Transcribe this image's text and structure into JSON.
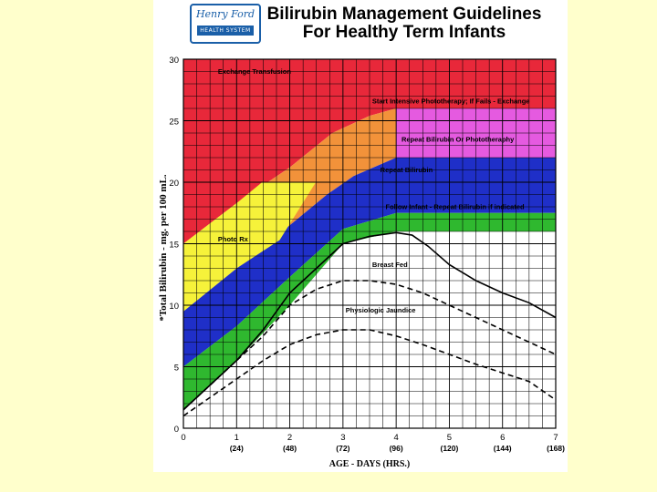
{
  "logo": {
    "script_text": "Henry Ford",
    "band_text": "HEALTH SYSTEM"
  },
  "title": {
    "line1": "Bilirubin Management Guidelines",
    "line2": "For Healthy Term Infants"
  },
  "colors": {
    "background": "#ffffcc",
    "exchange": "#e8283a",
    "intensive": "#f2923a",
    "repeat": "#e55ae0",
    "repeat_band": "#1f2fc8",
    "follow": "#2fb82f",
    "photo": "#f6f23a",
    "grid": "#000000"
  },
  "chart_data": {
    "type": "area",
    "title": "Bilirubin Management Guidelines For Healthy Term Infants",
    "xlabel": "AGE - DAYS (HRS.)",
    "ylabel": "*Total Bilirubin - mg. per 100 mL.",
    "xlim": [
      0,
      7
    ],
    "ylim": [
      0,
      30
    ],
    "grid": true,
    "x_ticks": [
      {
        "day": "0",
        "hours": ""
      },
      {
        "day": "1",
        "hours": "(24)"
      },
      {
        "day": "2",
        "hours": "(48)"
      },
      {
        "day": "3",
        "hours": "(72)"
      },
      {
        "day": "4",
        "hours": "(96)"
      },
      {
        "day": "5",
        "hours": "(120)"
      },
      {
        "day": "6",
        "hours": "(144)"
      },
      {
        "day": "7",
        "hours": "(168)"
      }
    ],
    "y_ticks": [
      "0",
      "5",
      "10",
      "15",
      "20",
      "25",
      "30"
    ],
    "zones": [
      {
        "name": "Exchange Transfusion",
        "color": "#e8283a",
        "label_at": [
          0.65,
          28.8
        ],
        "upper": [
          [
            0,
            30
          ],
          [
            7,
            30
          ]
        ],
        "lower": [
          [
            0,
            15
          ],
          [
            1,
            18.3
          ],
          [
            2,
            21.2
          ],
          [
            2.8,
            24
          ],
          [
            3.5,
            25.4
          ],
          [
            4,
            26
          ],
          [
            7,
            26
          ]
        ]
      },
      {
        "name": "Start Intensive Phototherapy; If Fails - Exchange",
        "color": "#f2923a",
        "label_at": [
          3.55,
          26.4
        ],
        "upper": [
          [
            0,
            15
          ],
          [
            1,
            18.3
          ],
          [
            2,
            21.2
          ],
          [
            2.8,
            24
          ],
          [
            3.5,
            25.4
          ],
          [
            4,
            26
          ],
          [
            7,
            26
          ]
        ],
        "lower": [
          [
            0,
            9.5
          ],
          [
            1,
            13
          ],
          [
            2,
            16.5
          ],
          [
            2.7,
            19
          ],
          [
            3.2,
            20.5
          ],
          [
            4,
            22
          ],
          [
            7,
            22
          ]
        ]
      },
      {
        "name": "Repeat Bilirubin Or Phototheraphy",
        "color": "#e55ae0",
        "label_at": [
          4.1,
          23.3
        ],
        "upper": [
          [
            4,
            26
          ],
          [
            7,
            26
          ]
        ],
        "lower": [
          [
            4,
            22
          ],
          [
            7,
            22
          ]
        ]
      },
      {
        "name": "Repeat Bilirubin",
        "color": "#1f2fc8",
        "label_at": [
          3.7,
          20.8
        ],
        "upper": [
          [
            0,
            9.5
          ],
          [
            1,
            13
          ],
          [
            2,
            16.5
          ],
          [
            2.7,
            19
          ],
          [
            3.2,
            20.5
          ],
          [
            4,
            22
          ],
          [
            7,
            22
          ]
        ],
        "lower": [
          [
            0,
            5
          ],
          [
            1,
            8.3
          ],
          [
            2,
            12.3
          ],
          [
            3,
            16.2
          ],
          [
            4,
            17.5
          ],
          [
            7,
            17.5
          ]
        ]
      },
      {
        "name": "Follow Infant - Repeat Bilirubin if indicated",
        "color": "#2fb82f",
        "label_at": [
          3.8,
          17.8
        ],
        "upper": [
          [
            0,
            5
          ],
          [
            1,
            8.3
          ],
          [
            2,
            12.3
          ],
          [
            3,
            16.2
          ],
          [
            4,
            17.5
          ],
          [
            7,
            17.5
          ]
        ],
        "lower": [
          [
            0,
            1.5
          ],
          [
            1,
            5.5
          ],
          [
            2,
            10
          ],
          [
            3,
            15
          ],
          [
            4,
            16
          ],
          [
            7,
            16
          ]
        ]
      },
      {
        "name": "Photo Rx",
        "color": "#f6f23a",
        "label_at": [
          0.65,
          15.2
        ],
        "upper": [
          [
            0,
            15
          ],
          [
            1,
            18.3
          ],
          [
            1.48,
            20
          ]
        ],
        "lower": [
          [
            0,
            9.5
          ],
          [
            1,
            13
          ],
          [
            1.81,
            15.3
          ],
          [
            2.49,
            20
          ]
        ]
      }
    ],
    "series": [
      {
        "name": "Breast Fed",
        "style": "solid",
        "label_at": [
          3.55,
          13.1
        ],
        "x": [
          0,
          0.5,
          1,
          1.5,
          2,
          2.5,
          3,
          3.5,
          4,
          4.3,
          4.6,
          5,
          5.5,
          6,
          6.5,
          7
        ],
        "y": [
          1.5,
          3.5,
          5.5,
          8,
          11,
          13,
          15,
          15.6,
          15.9,
          15.7,
          14.8,
          13.3,
          12,
          11,
          10.2,
          9
        ]
      },
      {
        "name": "Breast Fed (lower bound)",
        "style": "dashed",
        "label_at": null,
        "x": [
          0,
          0.5,
          1,
          1.5,
          2,
          2.5,
          3,
          3.5,
          4,
          4.5,
          5,
          5.5,
          6,
          6.5,
          7
        ],
        "y": [
          1.5,
          3.5,
          5.5,
          7.5,
          10,
          11.3,
          12,
          12,
          11.7,
          11,
          10,
          9,
          8,
          7,
          6
        ]
      },
      {
        "name": "Physiologic Jaundice",
        "style": "dashed",
        "label_at": [
          3.05,
          9.4
        ],
        "x": [
          0,
          0.5,
          1,
          1.5,
          2,
          2.5,
          3,
          3.5,
          4,
          4.5,
          5,
          5.5,
          6,
          6.5,
          7
        ],
        "y": [
          1,
          2.5,
          4,
          5.5,
          6.8,
          7.6,
          8,
          8,
          7.5,
          6.8,
          6,
          5.2,
          4.5,
          3.8,
          2.3
        ]
      }
    ]
  }
}
